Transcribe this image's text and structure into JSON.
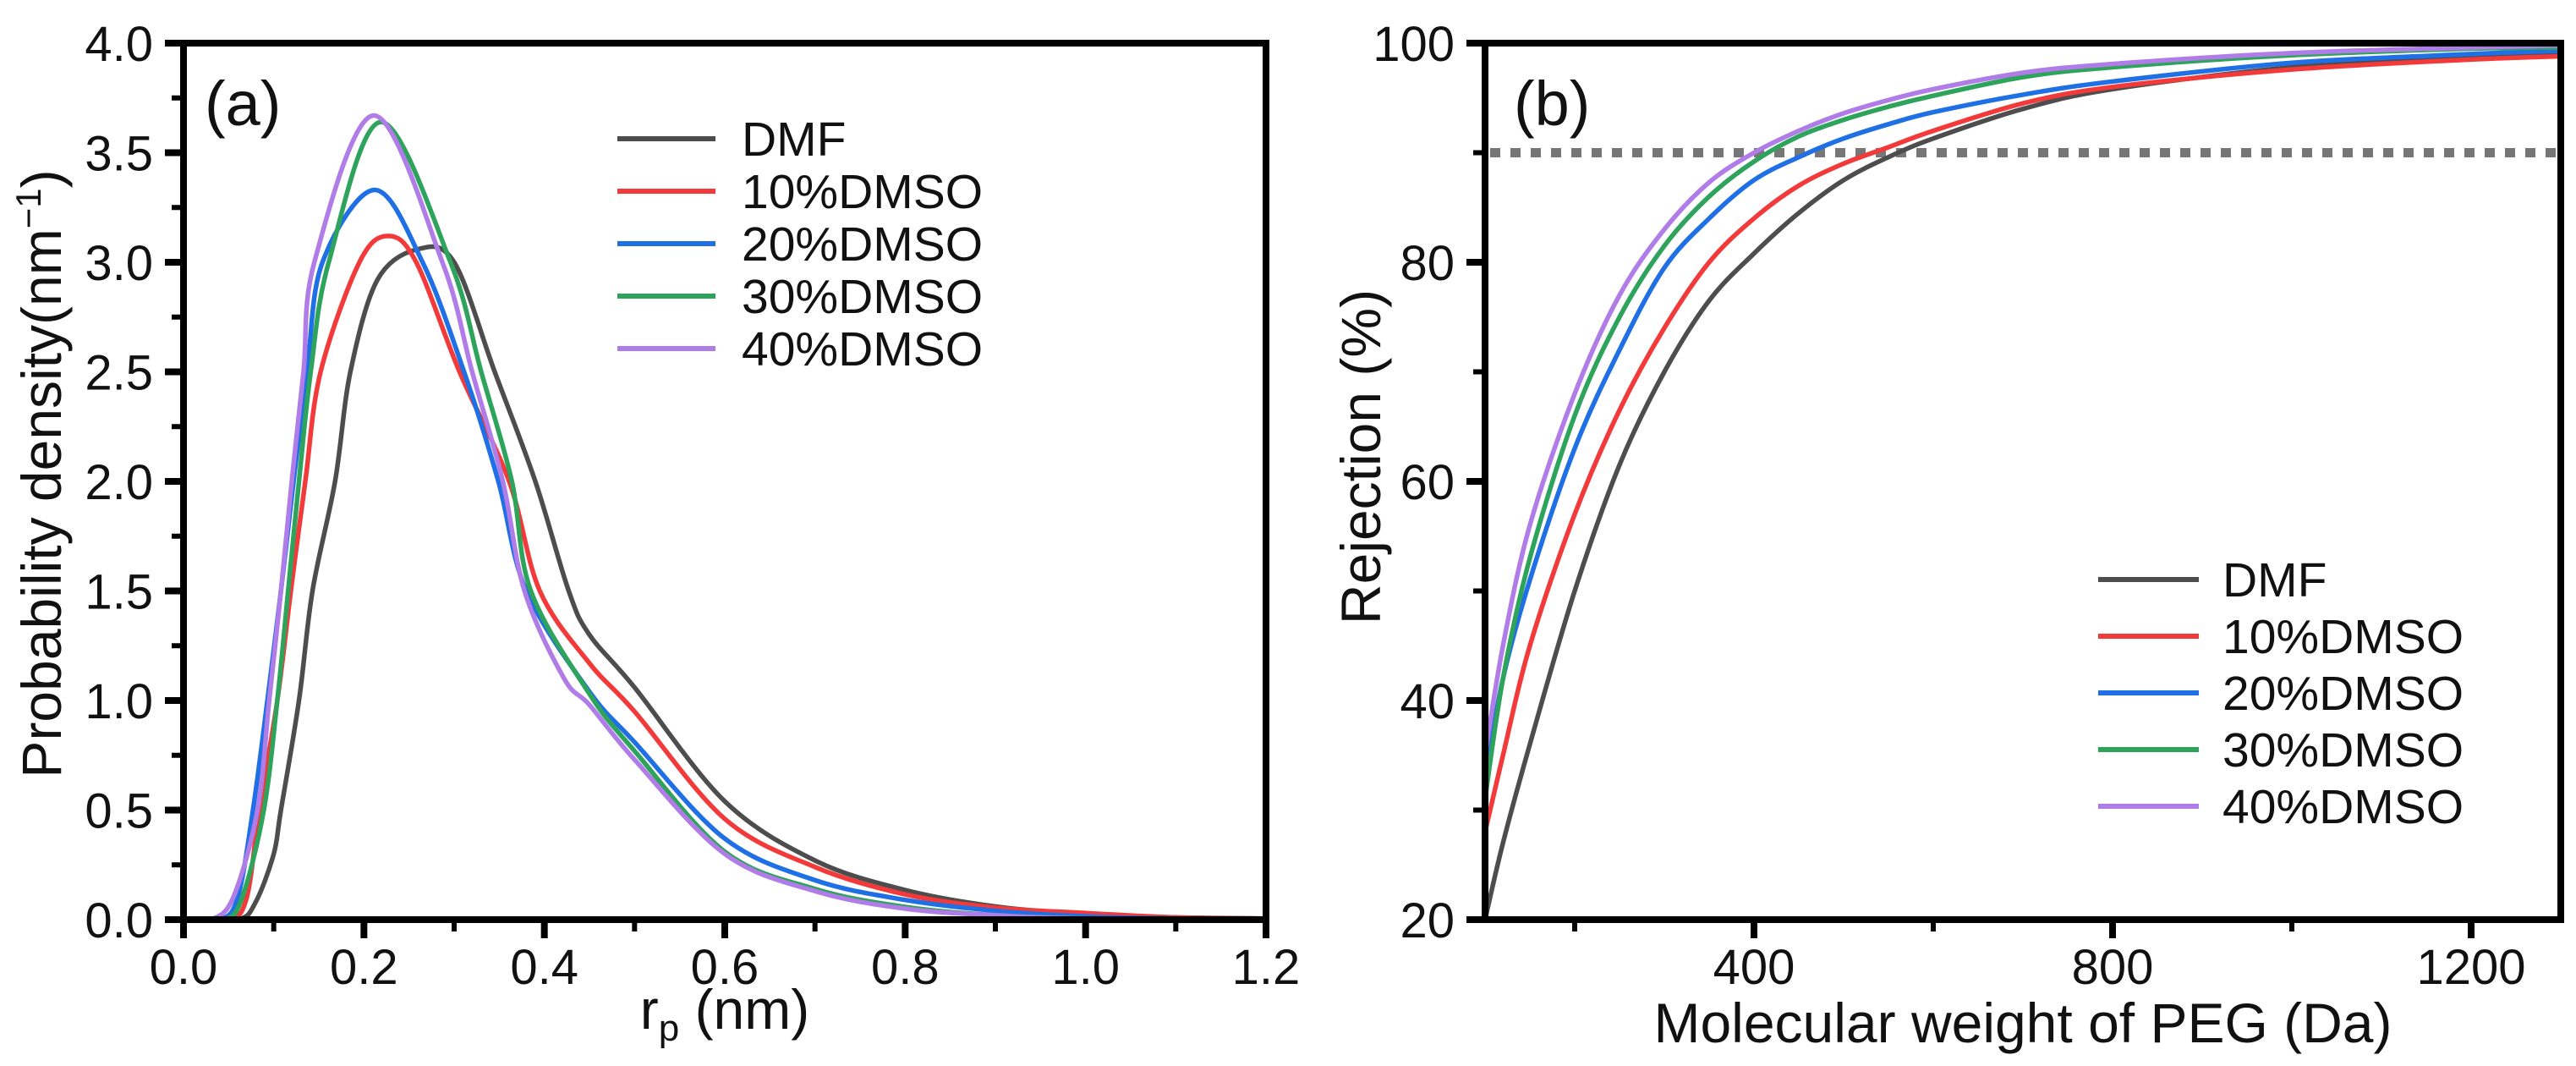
{
  "chart_data": [
    {
      "type": "line",
      "panel_label": "(a)",
      "xlabel": {
        "main": "r",
        "sub": "p",
        "rest": " (nm)"
      },
      "ylabel": {
        "main": "Probability density(nm",
        "sup": "−1",
        "rest": ")"
      },
      "xlim": [
        0,
        1.2
      ],
      "ylim": [
        0,
        4.0
      ],
      "xticks": [
        0.0,
        0.2,
        0.4,
        0.6,
        0.8,
        1.0,
        1.2
      ],
      "yticks": [
        0.0,
        0.5,
        1.0,
        1.5,
        2.0,
        2.5,
        3.0,
        3.5,
        4.0
      ],
      "tick_decimals": 1,
      "grid": false,
      "legend_position": "top-center",
      "series": [
        {
          "name": "DMF",
          "color": "#4d4d4d",
          "points": [
            [
              0,
              0
            ],
            [
              0.06,
              0
            ],
            [
              0.08,
              0.08
            ],
            [
              0.1,
              0.3
            ],
            [
              0.108,
              0.5
            ],
            [
              0.128,
              1.0
            ],
            [
              0.143,
              1.5
            ],
            [
              0.168,
              2.0
            ],
            [
              0.185,
              2.5
            ],
            [
              0.215,
              2.92
            ],
            [
              0.26,
              3.06
            ],
            [
              0.3,
              3.0
            ],
            [
              0.345,
              2.5
            ],
            [
              0.39,
              2.0
            ],
            [
              0.427,
              1.5
            ],
            [
              0.45,
              1.3
            ],
            [
              0.5,
              1.06
            ],
            [
              0.6,
              0.54
            ],
            [
              0.7,
              0.27
            ],
            [
              0.8,
              0.135
            ],
            [
              0.9,
              0.06
            ],
            [
              1.0,
              0.025
            ],
            [
              1.1,
              0.01
            ],
            [
              1.2,
              0.005
            ]
          ]
        },
        {
          "name": "10%DMSO",
          "color": "#f23a3a",
          "points": [
            [
              0,
              0
            ],
            [
              0.05,
              0
            ],
            [
              0.07,
              0.1
            ],
            [
              0.084,
              0.5
            ],
            [
              0.104,
              1.0
            ],
            [
              0.119,
              1.5
            ],
            [
              0.135,
              2.0
            ],
            [
              0.152,
              2.5
            ],
            [
              0.195,
              3.0
            ],
            [
              0.227,
              3.12
            ],
            [
              0.258,
              3.0
            ],
            [
              0.306,
              2.5
            ],
            [
              0.361,
              2.0
            ],
            [
              0.395,
              1.5
            ],
            [
              0.45,
              1.17
            ],
            [
              0.5,
              0.95
            ],
            [
              0.6,
              0.46
            ],
            [
              0.7,
              0.24
            ],
            [
              0.8,
              0.115
            ],
            [
              0.9,
              0.055
            ],
            [
              1.0,
              0.03
            ],
            [
              1.1,
              0.01
            ],
            [
              1.2,
              0.005
            ]
          ]
        },
        {
          "name": "20%DMSO",
          "color": "#1f6fe5",
          "points": [
            [
              0,
              0
            ],
            [
              0.04,
              0
            ],
            [
              0.06,
              0.1
            ],
            [
              0.077,
              0.5
            ],
            [
              0.093,
              1.0
            ],
            [
              0.108,
              1.5
            ],
            [
              0.122,
              2.0
            ],
            [
              0.137,
              2.5
            ],
            [
              0.154,
              3.0
            ],
            [
              0.212,
              3.33
            ],
            [
              0.265,
              3.0
            ],
            [
              0.311,
              2.5
            ],
            [
              0.349,
              2.0
            ],
            [
              0.38,
              1.5
            ],
            [
              0.45,
              1.04
            ],
            [
              0.5,
              0.81
            ],
            [
              0.6,
              0.37
            ],
            [
              0.7,
              0.18
            ],
            [
              0.8,
              0.09
            ],
            [
              0.9,
              0.04
            ],
            [
              1.0,
              0.015
            ],
            [
              1.1,
              0.005
            ],
            [
              1.2,
              0.005
            ]
          ]
        },
        {
          "name": "30%DMSO",
          "color": "#2ea35c",
          "points": [
            [
              0,
              0
            ],
            [
              0.045,
              0
            ],
            [
              0.065,
              0.1
            ],
            [
              0.089,
              0.5
            ],
            [
              0.104,
              1.0
            ],
            [
              0.116,
              1.5
            ],
            [
              0.128,
              2.0
            ],
            [
              0.141,
              2.5
            ],
            [
              0.161,
              3.0
            ],
            [
              0.219,
              3.64
            ],
            [
              0.296,
              3.0
            ],
            [
              0.33,
              2.5
            ],
            [
              0.364,
              2.0
            ],
            [
              0.385,
              1.5
            ],
            [
              0.45,
              1.03
            ],
            [
              0.5,
              0.77
            ],
            [
              0.6,
              0.31
            ],
            [
              0.7,
              0.14
            ],
            [
              0.8,
              0.058
            ],
            [
              0.9,
              0.02
            ],
            [
              1.0,
              0.005
            ],
            [
              1.2,
              0
            ]
          ]
        },
        {
          "name": "40%DMSO",
          "color": "#b07ce8",
          "points": [
            [
              0,
              0
            ],
            [
              0.03,
              0
            ],
            [
              0.055,
              0.1
            ],
            [
              0.082,
              0.5
            ],
            [
              0.095,
              1.0
            ],
            [
              0.108,
              1.5
            ],
            [
              0.12,
              2.0
            ],
            [
              0.133,
              2.5
            ],
            [
              0.145,
              3.0
            ],
            [
              0.211,
              3.67
            ],
            [
              0.287,
              3.0
            ],
            [
              0.32,
              2.5
            ],
            [
              0.354,
              2.0
            ],
            [
              0.378,
              1.5
            ],
            [
              0.422,
              1.1
            ],
            [
              0.45,
              0.98
            ],
            [
              0.5,
              0.73
            ],
            [
              0.6,
              0.3
            ],
            [
              0.7,
              0.13
            ],
            [
              0.8,
              0.05
            ],
            [
              0.9,
              0.02
            ],
            [
              1.0,
              0.005
            ],
            [
              1.2,
              0
            ]
          ]
        }
      ]
    },
    {
      "type": "line",
      "panel_label": "(b)",
      "xlabel": {
        "main": "Molecular weight of PEG (Da)",
        "sub": "",
        "rest": ""
      },
      "ylabel": {
        "main": "Rejection (%)",
        "sup": "",
        "rest": ""
      },
      "xlim": [
        100,
        1300
      ],
      "ylim": [
        20,
        100
      ],
      "xticks": [
        400,
        800,
        1200
      ],
      "yticks": [
        20,
        40,
        60,
        80,
        100
      ],
      "tick_decimals": 0,
      "grid": false,
      "reference_line": {
        "y": 90,
        "style": "dotted",
        "color": "#777777"
      },
      "legend_position": "bottom-right",
      "series": [
        {
          "name": "DMF",
          "color": "#4d4d4d",
          "x": [
            100,
            120,
            150,
            200,
            250,
            300,
            350,
            400,
            450,
            500,
            550,
            600,
            700,
            800,
            1000,
            1200,
            1300
          ],
          "values": [
            20,
            27,
            36,
            50,
            61.5,
            70,
            76.5,
            80.8,
            84.5,
            87.5,
            89.6,
            91.3,
            94,
            95.8,
            97.8,
            98.8,
            99.1
          ]
        },
        {
          "name": "10%DMSO",
          "color": "#f23a3a",
          "x": [
            100,
            120,
            150,
            200,
            250,
            300,
            350,
            400,
            450,
            500,
            550,
            600,
            700,
            800,
            1000,
            1200,
            1300
          ],
          "values": [
            28,
            35,
            45,
            57,
            66.5,
            74,
            80,
            84,
            87,
            89,
            90.5,
            92,
            94.5,
            96,
            97.6,
            98.5,
            98.8
          ]
        },
        {
          "name": "20%DMSO",
          "color": "#1f6fe5",
          "x": [
            100,
            120,
            150,
            200,
            250,
            300,
            350,
            400,
            450,
            500,
            550,
            600,
            700,
            800,
            1000,
            1200,
            1300
          ],
          "values": [
            33,
            42,
            51,
            63,
            72,
            79.5,
            84,
            87.5,
            89.6,
            91.3,
            92.6,
            93.7,
            95.3,
            96.5,
            98.2,
            99.0,
            99.3
          ]
        },
        {
          "name": "30%DMSO",
          "color": "#2ea35c",
          "x": [
            100,
            120,
            150,
            200,
            250,
            300,
            350,
            400,
            450,
            500,
            550,
            600,
            700,
            800,
            1000,
            1200,
            1300
          ],
          "values": [
            31,
            42,
            53,
            66,
            75,
            81.5,
            86,
            89.2,
            91.5,
            93,
            94.2,
            95.2,
            96.9,
            97.8,
            98.9,
            99.5,
            99.6
          ]
        },
        {
          "name": "40%DMSO",
          "color": "#b07ce8",
          "x": [
            100,
            120,
            150,
            200,
            250,
            300,
            350,
            400,
            450,
            500,
            550,
            600,
            700,
            800,
            1000,
            1200,
            1300
          ],
          "values": [
            35,
            45,
            56,
            68,
            77,
            83,
            87.3,
            90,
            92,
            93.6,
            94.8,
            95.8,
            97.3,
            98.1,
            99.1,
            99.6,
            99.8
          ]
        }
      ]
    }
  ]
}
